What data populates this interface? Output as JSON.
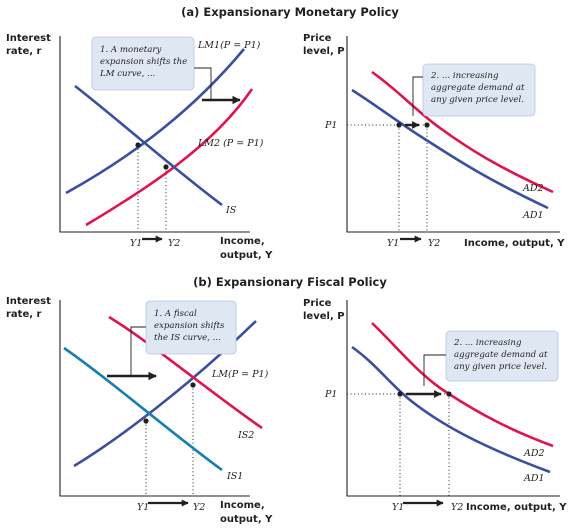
{
  "colors": {
    "blue": "#3a4fa0",
    "red": "#e0144c",
    "teal": "#1a7fb0",
    "note_box": "#dfe7f3",
    "ink": "#231f20"
  },
  "panels": {
    "a": {
      "title": "(a) Expansionary Monetary Policy",
      "left": {
        "y_label_1": "Interest",
        "y_label_2": "rate, r",
        "x_label_1": "Income,",
        "x_label_2": "output, Y",
        "curve_lm1": "LM1(P = P1)",
        "curve_lm2": "LM2 (P = P1)",
        "curve_is": "IS",
        "y1": "Y1",
        "y2": "Y2",
        "note_1": "1. A monetary",
        "note_2": "expansion shifts the",
        "note_3": "LM curve, ..."
      },
      "right": {
        "y_label_1": "Price",
        "y_label_2": "level, P",
        "x_label": "Income, output, Y",
        "p1": "P1",
        "curve_ad1": "AD1",
        "curve_ad2": "AD2",
        "y1": "Y1",
        "y2": "Y2",
        "note_1": "2. ... increasing",
        "note_2": "aggregate demand at",
        "note_3": "any given price level."
      }
    },
    "b": {
      "title": "(b) Expansionary Fiscal Policy",
      "left": {
        "y_label_1": "Interest",
        "y_label_2": "rate, r",
        "x_label_1": "Income,",
        "x_label_2": "output, Y",
        "curve_lm": "LM(P = P1)",
        "curve_is1": "IS1",
        "curve_is2": "IS2",
        "y1": "Y1",
        "y2": "Y2",
        "note_1": "1. A fiscal",
        "note_2": "expansion shifts",
        "note_3": "the IS curve, ..."
      },
      "right": {
        "y_label_1": "Price",
        "y_label_2": "level, P",
        "x_label": "Income, output, Y",
        "p1": "P1",
        "curve_ad1": "AD1",
        "curve_ad2": "AD2",
        "y1": "Y1",
        "y2": "Y2",
        "note_1": "2. ... increasing",
        "note_2": "aggregate demand at",
        "note_3": "any given price level."
      }
    }
  }
}
